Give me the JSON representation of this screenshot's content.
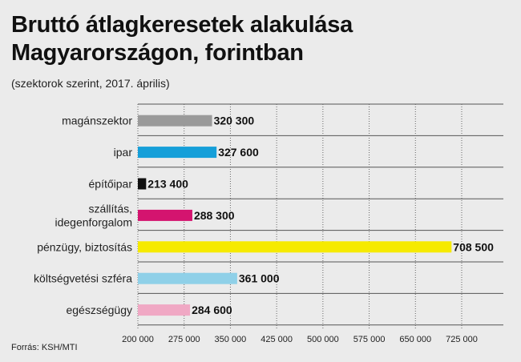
{
  "title_line1": "Bruttó átlagkeresetek alakulása",
  "title_line2": "Magyarországon, forintban",
  "subtitle": "(szektorok szerint, 2017. április)",
  "source": "Forrás: KSH/MTI",
  "chart_data": {
    "type": "bar",
    "orientation": "horizontal",
    "categories": [
      [
        "magánszektor"
      ],
      [
        "ipar"
      ],
      [
        "építőipar"
      ],
      [
        "szállítás,",
        "idegenforgalom"
      ],
      [
        "pénzügy, biztosítás"
      ],
      [
        "költségvetési szféra"
      ],
      [
        "egészségügy"
      ]
    ],
    "values": [
      320300,
      327600,
      213400,
      288300,
      708500,
      361000,
      284600
    ],
    "value_labels": [
      "320 300",
      "327 600",
      "213 400",
      "288 300",
      "708 500",
      "361 000",
      "284 600"
    ],
    "colors": [
      "#9a9a9a",
      "#159fd9",
      "#111111",
      "#d4146f",
      "#f6ea00",
      "#8fd0e8",
      "#f0a8c4"
    ],
    "xlim": [
      200000,
      725000
    ],
    "xticks": [
      200000,
      275000,
      350000,
      425000,
      500000,
      575000,
      650000,
      725000
    ],
    "xtick_labels": [
      "200 000",
      "275 000",
      "350 000",
      "425 000",
      "500 000",
      "575 000",
      "650 000",
      "725 000"
    ],
    "grid": true
  }
}
